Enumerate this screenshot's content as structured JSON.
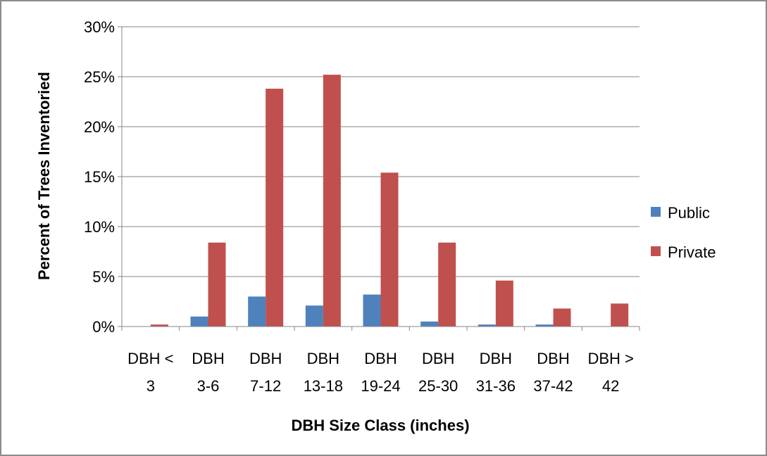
{
  "chart_data": {
    "type": "bar",
    "title": "",
    "xlabel": "DBH Size Class (inches)",
    "ylabel": "Percent of Trees Inventoried",
    "ylim": [
      0,
      30
    ],
    "y_ticks": [
      "0%",
      "5%",
      "10%",
      "15%",
      "20%",
      "25%",
      "30%"
    ],
    "categories": [
      [
        "DBH <",
        "3"
      ],
      [
        "DBH",
        "3-6"
      ],
      [
        "DBH",
        "7-12"
      ],
      [
        "DBH",
        "13-18"
      ],
      [
        "DBH",
        "19-24"
      ],
      [
        "DBH",
        "25-30"
      ],
      [
        "DBH",
        "31-36"
      ],
      [
        "DBH",
        "37-42"
      ],
      [
        "DBH >",
        "42"
      ]
    ],
    "series": [
      {
        "name": "Public",
        "color": "#4f81bd",
        "values": [
          0,
          1.0,
          3.0,
          2.1,
          3.2,
          0.5,
          0.2,
          0.2,
          0
        ]
      },
      {
        "name": "Private",
        "color": "#c0504d",
        "values": [
          0.2,
          8.4,
          23.8,
          25.2,
          15.4,
          8.4,
          4.6,
          1.8,
          2.3
        ]
      }
    ],
    "grid": true,
    "legend": "right"
  }
}
